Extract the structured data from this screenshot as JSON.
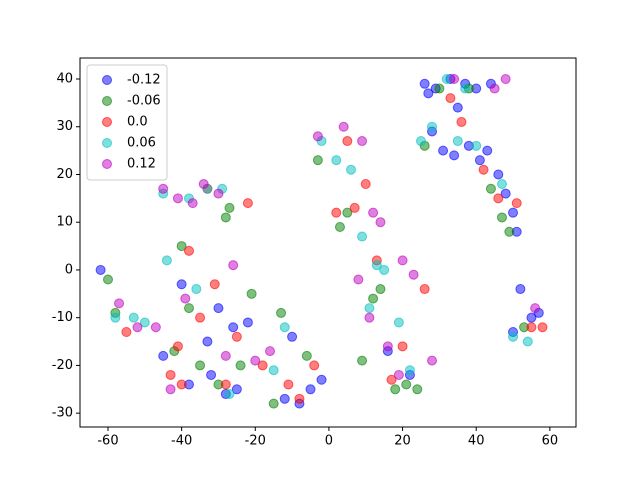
{
  "chart_data": {
    "type": "scatter",
    "xlim": [
      -67.6,
      67.1
    ],
    "ylim": [
      -32.9,
      44.4
    ],
    "xticks": [
      -60,
      -40,
      -20,
      0,
      20,
      40,
      60
    ],
    "yticks": [
      -30,
      -20,
      -10,
      0,
      10,
      20,
      30,
      40
    ],
    "grid": false,
    "legend": "upper left",
    "series": [
      {
        "name": "-0.12",
        "color": "#0000ff",
        "x": [
          26,
          29,
          33,
          37,
          40,
          44,
          28,
          31,
          34,
          38,
          41,
          43,
          46,
          48,
          50,
          51,
          27,
          35,
          -62,
          -45,
          -38,
          -32,
          -28,
          -25,
          -22,
          -12,
          -8,
          -5,
          -2,
          -10,
          -30,
          -26,
          52,
          55,
          50,
          57,
          16,
          22,
          -33,
          -40
        ],
        "y": [
          39,
          38,
          40,
          39,
          38,
          39,
          29,
          25,
          24,
          26,
          23,
          25,
          20,
          16,
          12,
          8,
          37,
          34,
          0,
          -18,
          -24,
          -22,
          -26,
          -25,
          -11,
          -27,
          -28,
          -25,
          -23,
          -14,
          -8,
          -12,
          -4,
          -10,
          -13,
          -9,
          -17,
          -22,
          -15,
          -3
        ]
      },
      {
        "name": "-0.06",
        "color": "#008000",
        "x": [
          -60,
          -58,
          -42,
          -40,
          -35,
          -30,
          -27,
          -24,
          -21,
          -13,
          -15,
          -6,
          -3,
          3,
          5,
          12,
          14,
          18,
          24,
          26,
          30,
          38,
          44,
          47,
          49,
          53,
          -28,
          -38,
          9,
          21
        ],
        "y": [
          -2,
          -9,
          -17,
          5,
          -20,
          -24,
          13,
          -20,
          -5,
          -9,
          -28,
          -18,
          23,
          9,
          12,
          -6,
          -4,
          -25,
          -25,
          26,
          38,
          38,
          17,
          11,
          8,
          -12,
          11,
          -8,
          -19,
          -24
        ]
      },
      {
        "name": "0.0",
        "color": "#ff0000",
        "x": [
          -55,
          -43,
          -41,
          -38,
          -35,
          -31,
          -28,
          -25,
          -22,
          -18,
          -11,
          -4,
          2,
          7,
          10,
          13,
          17,
          20,
          26,
          33,
          36,
          42,
          46,
          51,
          55,
          58,
          -40,
          -8,
          -33,
          5
        ],
        "y": [
          -13,
          -22,
          -16,
          4,
          -10,
          -3,
          -24,
          -14,
          14,
          -20,
          -24,
          -20,
          12,
          13,
          18,
          2,
          -23,
          -16,
          -4,
          36,
          31,
          21,
          15,
          14,
          -12,
          -12,
          -24,
          -27,
          17,
          27
        ]
      },
      {
        "name": "0.06",
        "color": "#00bfbf",
        "x": [
          -58,
          -53,
          -50,
          -44,
          -38,
          -33,
          -29,
          -27,
          -15,
          -12,
          -2,
          2,
          6,
          9,
          13,
          15,
          19,
          22,
          25,
          28,
          32,
          37,
          40,
          47,
          50,
          54,
          -45,
          -36,
          11,
          35
        ],
        "y": [
          -10,
          -10,
          -11,
          2,
          15,
          17,
          17,
          -26,
          -21,
          -12,
          27,
          23,
          21,
          7,
          1,
          0,
          -11,
          -21,
          27,
          30,
          40,
          38,
          26,
          18,
          -14,
          -15,
          16,
          -4,
          -8,
          27
        ]
      },
      {
        "name": "0.12",
        "color": "#bf00bf",
        "x": [
          -57,
          -52,
          -47,
          -45,
          -41,
          -37,
          -34,
          -30,
          -26,
          -20,
          -43,
          -39,
          -3,
          4,
          9,
          12,
          14,
          11,
          8,
          20,
          23,
          16,
          19,
          28,
          34,
          45,
          48,
          56,
          -16,
          -28
        ],
        "y": [
          -7,
          -12,
          -12,
          17,
          15,
          14,
          18,
          16,
          1,
          -19,
          -25,
          -6,
          28,
          30,
          27,
          12,
          10,
          -10,
          -2,
          2,
          -1,
          -16,
          -22,
          -19,
          40,
          38,
          40,
          -8,
          -17,
          -18
        ]
      }
    ]
  }
}
